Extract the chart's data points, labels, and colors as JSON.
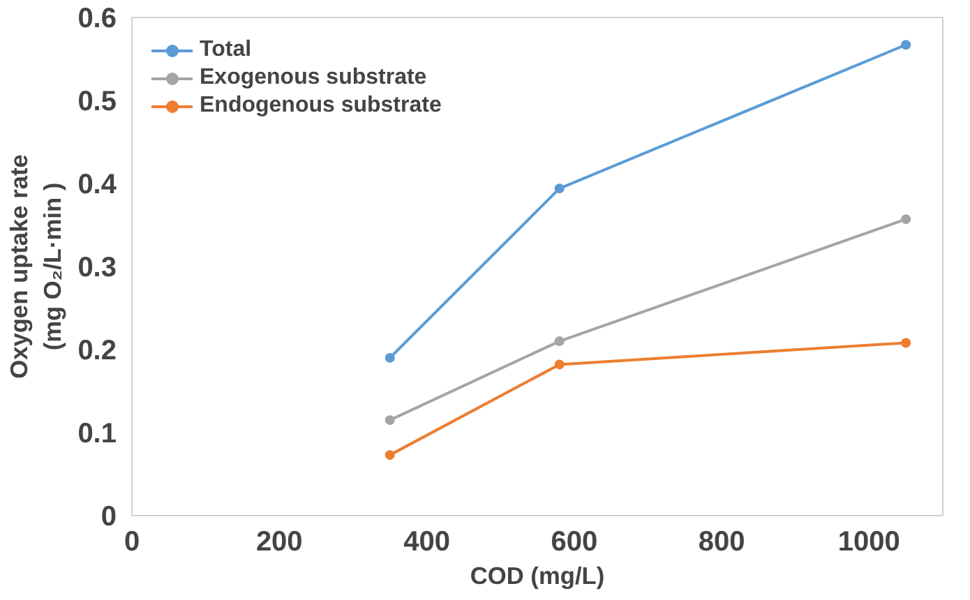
{
  "chart_data": {
    "type": "line",
    "xlabel": "COD (mg/L)",
    "ylabel": "Oxygen uptake rate\n(mg O₂/L·min )",
    "x": [
      350,
      580,
      1050
    ],
    "series": [
      {
        "name": "Total",
        "color": "#5b9bd5",
        "values": [
          0.19,
          0.394,
          0.567
        ]
      },
      {
        "name": "Exogenous substrate",
        "color": "#a5a5a5",
        "values": [
          0.115,
          0.21,
          0.357
        ]
      },
      {
        "name": "Endogenous substrate",
        "color": "#ed7d31",
        "values": [
          0.073,
          0.182,
          0.208
        ]
      }
    ],
    "xlim": [
      0,
      1100
    ],
    "xticks": [
      0,
      200,
      400,
      600,
      800,
      1000
    ],
    "ylim": [
      0,
      0.6
    ],
    "yticks": [
      0,
      {
        "value": 0.1,
        "label": "0.1"
      },
      {
        "value": 0.2,
        "label": "0.2"
      },
      {
        "value": 0.3,
        "label": "0.3"
      },
      {
        "value": 0.4,
        "label": "0.4"
      },
      {
        "value": 0.5,
        "label": "0.5"
      },
      {
        "value": 0.6,
        "label": "0.6"
      }
    ],
    "grid": false,
    "legend": "top left",
    "marker": "circle",
    "line_style": "solid"
  }
}
